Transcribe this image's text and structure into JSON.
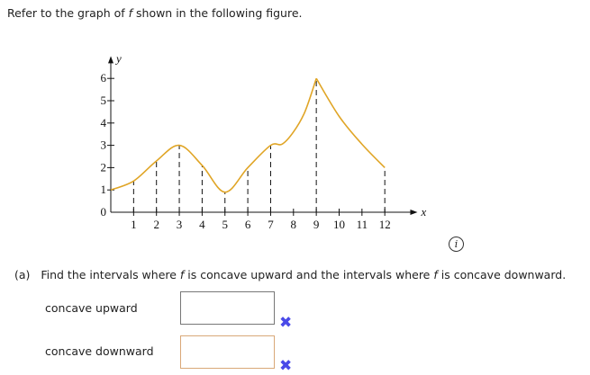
{
  "prompt": {
    "before": "Refer to the graph of ",
    "fname": "f",
    "after": " shown in the following figure."
  },
  "chart_data": {
    "type": "line",
    "xlabel": "x",
    "ylabel": "y",
    "xlim": [
      0,
      12.8
    ],
    "ylim": [
      0,
      6.6
    ],
    "x_ticks": [
      1,
      2,
      3,
      4,
      5,
      6,
      7,
      8,
      9,
      10,
      11,
      12
    ],
    "y_ticks": [
      0,
      1,
      2,
      3,
      4,
      5,
      6
    ],
    "color": "#e0a526",
    "segments": [
      [
        [
          0,
          1
        ],
        [
          1,
          1.4
        ],
        [
          2,
          2.3
        ],
        [
          3,
          3
        ],
        [
          4,
          2.1
        ],
        [
          5,
          0.9
        ],
        [
          6,
          2
        ],
        [
          7,
          3
        ],
        [
          7.5,
          3.05
        ],
        [
          8,
          3.6
        ],
        [
          8.5,
          4.5
        ],
        [
          9,
          6
        ]
      ],
      [
        [
          9,
          6
        ],
        [
          10,
          4.3
        ],
        [
          11,
          3.05
        ],
        [
          12,
          2
        ]
      ]
    ],
    "dashed_at": [
      [
        1,
        1.4
      ],
      [
        2,
        2.3
      ],
      [
        3,
        3
      ],
      [
        4,
        2.1
      ],
      [
        5,
        0.9
      ],
      [
        6,
        2
      ],
      [
        7,
        3
      ],
      [
        9,
        6
      ],
      [
        12,
        2
      ]
    ]
  },
  "info_icon": "info-icon",
  "question": {
    "label": "(a)",
    "before": "Find the intervals where ",
    "f1": "f",
    "middle": " is concave upward and the intervals where ",
    "f2": "f",
    "after": " is concave downward."
  },
  "answers": [
    {
      "label": "concave upward",
      "value": "",
      "status_icon": "x-mark-icon"
    },
    {
      "label": "concave downward",
      "value": "",
      "status_icon": "x-mark-icon"
    }
  ]
}
